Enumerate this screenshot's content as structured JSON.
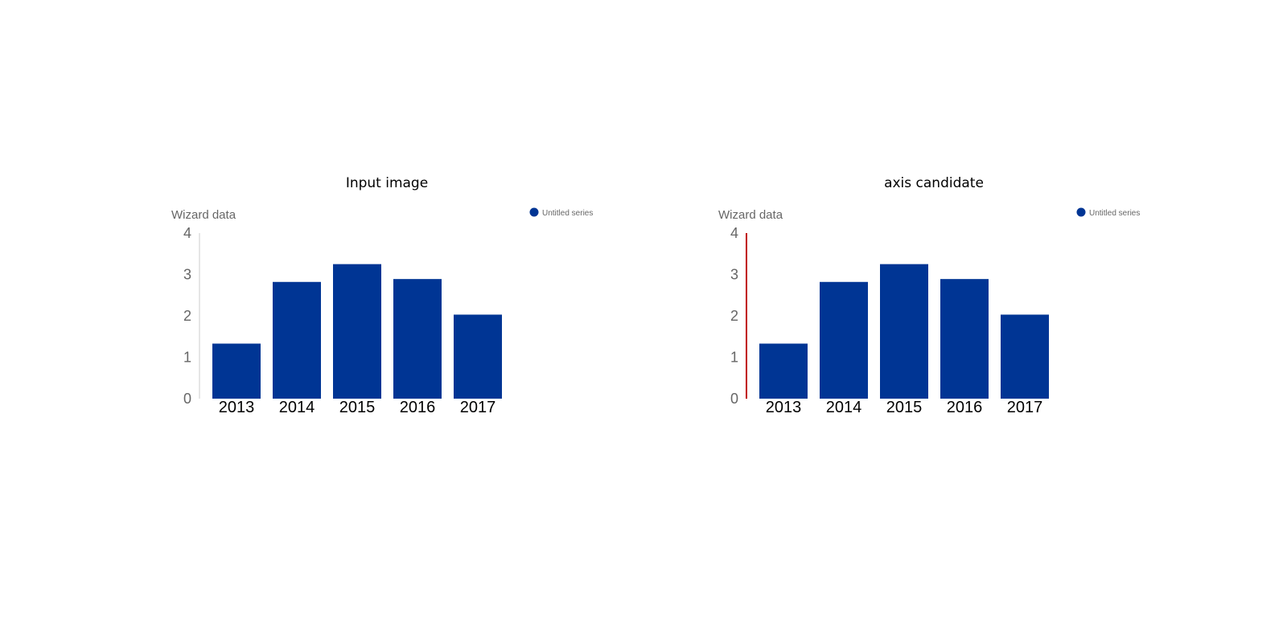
{
  "panels": [
    {
      "title": "Input image",
      "axis_highlight": false,
      "chart_data": {
        "type": "bar",
        "categories": [
          "2013",
          "2014",
          "2015",
          "2016",
          "2017"
        ],
        "series": [
          {
            "name": "Untitled series",
            "values": [
              1.33,
              2.82,
              3.25,
              2.89,
              2.03
            ]
          }
        ],
        "ylabel": "Wizard data",
        "ylim": [
          0,
          4
        ],
        "yticks": [
          0,
          1,
          2,
          3,
          4
        ],
        "grid": false,
        "legend": "top-right"
      }
    },
    {
      "title": "axis candidate",
      "axis_highlight": true,
      "chart_data": {
        "type": "bar",
        "categories": [
          "2013",
          "2014",
          "2015",
          "2016",
          "2017"
        ],
        "series": [
          {
            "name": "Untitled series",
            "values": [
              1.33,
              2.82,
              3.25,
              2.89,
              2.03
            ]
          }
        ],
        "ylabel": "Wizard data",
        "ylim": [
          0,
          4
        ],
        "yticks": [
          0,
          1,
          2,
          3,
          4
        ],
        "grid": false,
        "legend": "top-right"
      }
    }
  ],
  "colors": {
    "bar": "#003594",
    "axis": "#cccccc",
    "axis_highlight": "#c00000"
  }
}
